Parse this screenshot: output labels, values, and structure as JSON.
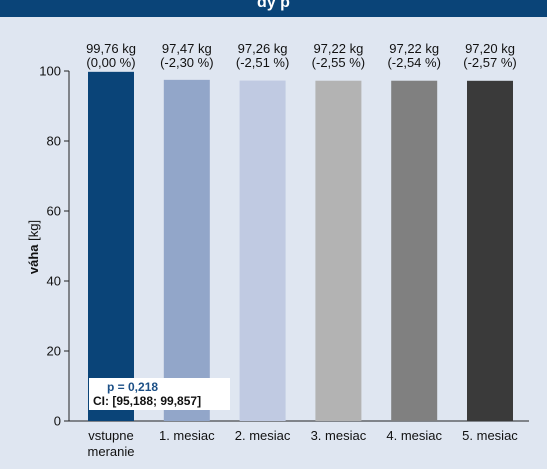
{
  "header": {
    "title": "dy         p"
  },
  "colors": {
    "background": "#dfe6f1",
    "header": "#0a4478",
    "bars": [
      "#0a4478",
      "#92a6c9",
      "#c0cae2",
      "#b3b3b3",
      "#808080",
      "#3a3a3a"
    ]
  },
  "chart_data": {
    "type": "bar",
    "categories": [
      [
        "vstupne",
        "meranie"
      ],
      [
        "1. mesiac"
      ],
      [
        "2. mesiac"
      ],
      [
        "3. mesiac"
      ],
      [
        "4. mesiac"
      ],
      [
        "5. mesiac"
      ]
    ],
    "values": [
      99.76,
      97.47,
      97.26,
      97.22,
      97.22,
      97.2
    ],
    "value_labels": [
      "99,76 kg",
      "97,47 kg",
      "97,26 kg",
      "97,22 kg",
      "97,22 kg",
      "97,20 kg"
    ],
    "change_labels": [
      "(0,00 %)",
      "(-2,30 %)",
      "(-2,51 %)",
      "(-2,55 %)",
      "(-2,54 %)",
      "(-2,57 %)"
    ],
    "ylabel_bold": "váha",
    "ylabel_rest": " [kg]",
    "ylim": [
      0,
      100
    ],
    "yticks": [
      0,
      20,
      40,
      60,
      80,
      100
    ],
    "grid": false,
    "annotations": {
      "p_value": "p = 0,218",
      "ci": "CI: [95,188; 99,857]"
    }
  }
}
